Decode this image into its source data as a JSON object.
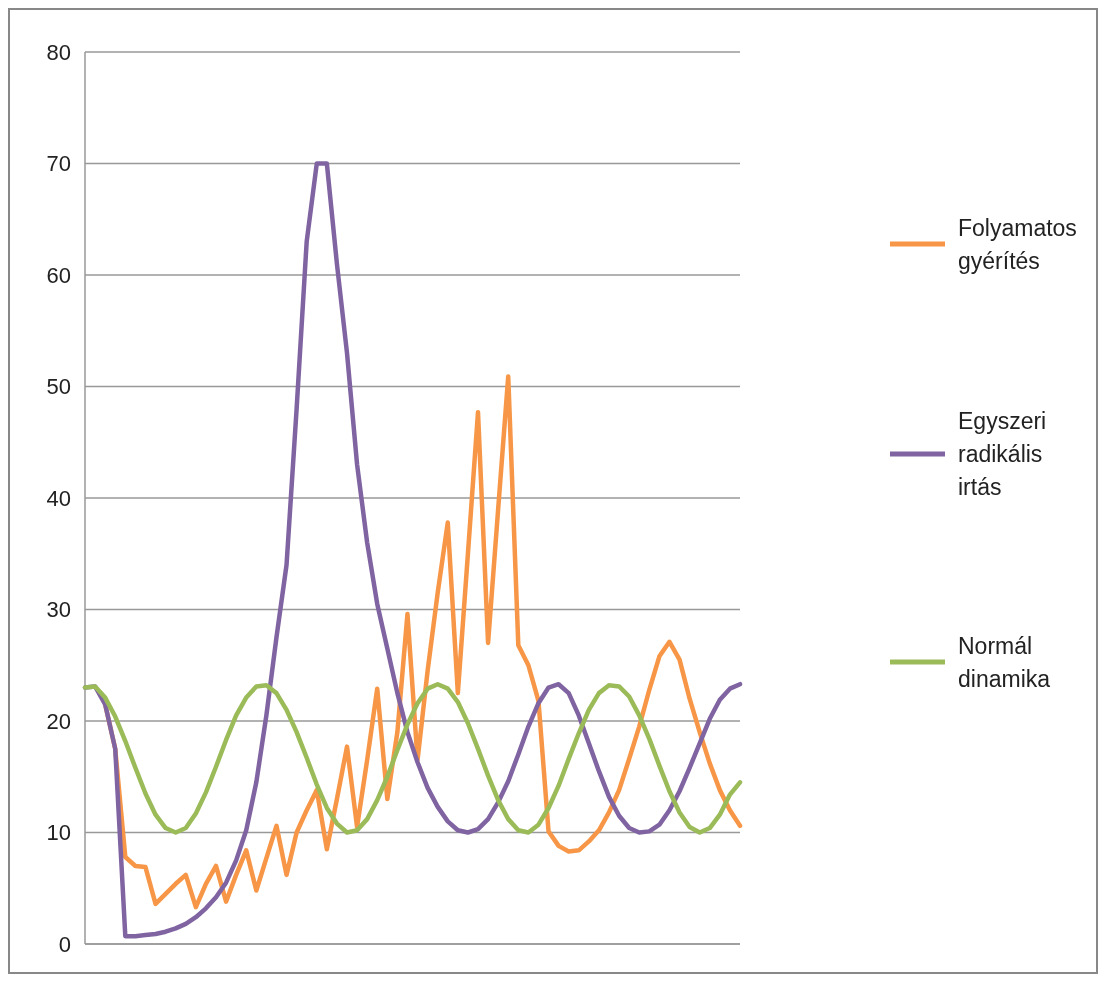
{
  "chart_data": {
    "type": "line",
    "categories": [
      null,
      null,
      null,
      null,
      null,
      null,
      null,
      null,
      null,
      null,
      null,
      null,
      null,
      null,
      null,
      null,
      null,
      null,
      null,
      null,
      null,
      null,
      null,
      null,
      null,
      null,
      null,
      null,
      null,
      null,
      null,
      null,
      null,
      null,
      null,
      null,
      null,
      null,
      null,
      null,
      null,
      null,
      null,
      null,
      null,
      null,
      null,
      null,
      null,
      null,
      null,
      null,
      null,
      null,
      null,
      null,
      null,
      null,
      null,
      null,
      null,
      null,
      null,
      null,
      null,
      null
    ],
    "ylim": [
      0,
      80
    ],
    "yticks": [
      0,
      10,
      20,
      30,
      40,
      50,
      60,
      70,
      80
    ],
    "grid": "y",
    "legend": "right",
    "marker": "none",
    "line_style": "solid",
    "tick_labels": "y",
    "series": [
      {
        "name": "Folyamatos gyérítés",
        "color": "#f79646",
        "values": [
          null,
          null,
          21.5,
          17.5,
          7.8,
          7.0,
          6.9,
          3.6,
          4.5,
          5.4,
          6.2,
          3.3,
          5.4,
          7.0,
          3.8,
          6.2,
          8.4,
          4.8,
          7.7,
          10.6,
          6.2,
          10.0,
          12.0,
          13.8,
          8.5,
          13.0,
          17.7,
          10.5,
          16.5,
          22.9,
          13.0,
          19.0,
          29.6,
          16.5,
          24.5,
          31.5,
          37.8,
          22.5,
          35,
          47.7,
          27,
          39,
          50.9,
          26.8,
          25.0,
          21.8,
          10.1,
          8.8,
          8.3,
          8.4,
          9.2,
          10.2,
          11.8,
          13.8,
          16.6,
          19.5,
          22.8,
          25.8,
          27.1,
          25.5,
          22.0,
          19.0,
          16.2,
          13.8,
          12.0,
          10.6
        ]
      },
      {
        "name": "Egyszeri radikális irtás",
        "color": "#8064a2",
        "values": [
          23,
          23.1,
          21.5,
          17.5,
          0.7,
          0.7,
          0.8,
          0.9,
          1.1,
          1.4,
          1.8,
          2.4,
          3.2,
          4.2,
          5.5,
          7.5,
          10.2,
          14.5,
          20.5,
          27.5,
          34,
          48,
          63,
          70,
          70,
          61,
          53,
          43,
          36,
          30.5,
          26.5,
          22.5,
          19,
          16.3,
          14,
          12.3,
          11,
          10.2,
          10,
          10.3,
          11.2,
          12.7,
          14.6,
          17,
          19.5,
          21.6,
          23,
          23.3,
          22.5,
          20.5,
          18,
          15.5,
          13.2,
          11.5,
          10.4,
          10,
          10.1,
          10.7,
          12,
          13.7,
          15.8,
          18,
          20.2,
          21.9,
          22.9,
          23.3
        ]
      },
      {
        "name": "Normál dinamika",
        "color": "#9bbb59",
        "values": [
          23,
          23.1,
          22.1,
          20.4,
          18.2,
          15.8,
          13.5,
          11.6,
          10.4,
          10.0,
          10.4,
          11.7,
          13.6,
          15.9,
          18.3,
          20.5,
          22.1,
          23.1,
          23.2,
          22.5,
          21.0,
          19.0,
          16.7,
          14.3,
          12.2,
          10.8,
          10.0,
          10.2,
          11.2,
          12.9,
          15.0,
          17.4,
          19.7,
          21.6,
          22.9,
          23.3,
          22.9,
          21.7,
          19.8,
          17.5,
          15.1,
          12.9,
          11.2,
          10.2,
          10.0,
          10.7,
          12.2,
          14.2,
          16.6,
          18.9,
          21.0,
          22.5,
          23.2,
          23.1,
          22.2,
          20.5,
          18.4,
          16.0,
          13.7,
          11.8,
          10.5,
          10.0,
          10.4,
          11.6,
          13.4,
          14.5
        ]
      }
    ]
  }
}
